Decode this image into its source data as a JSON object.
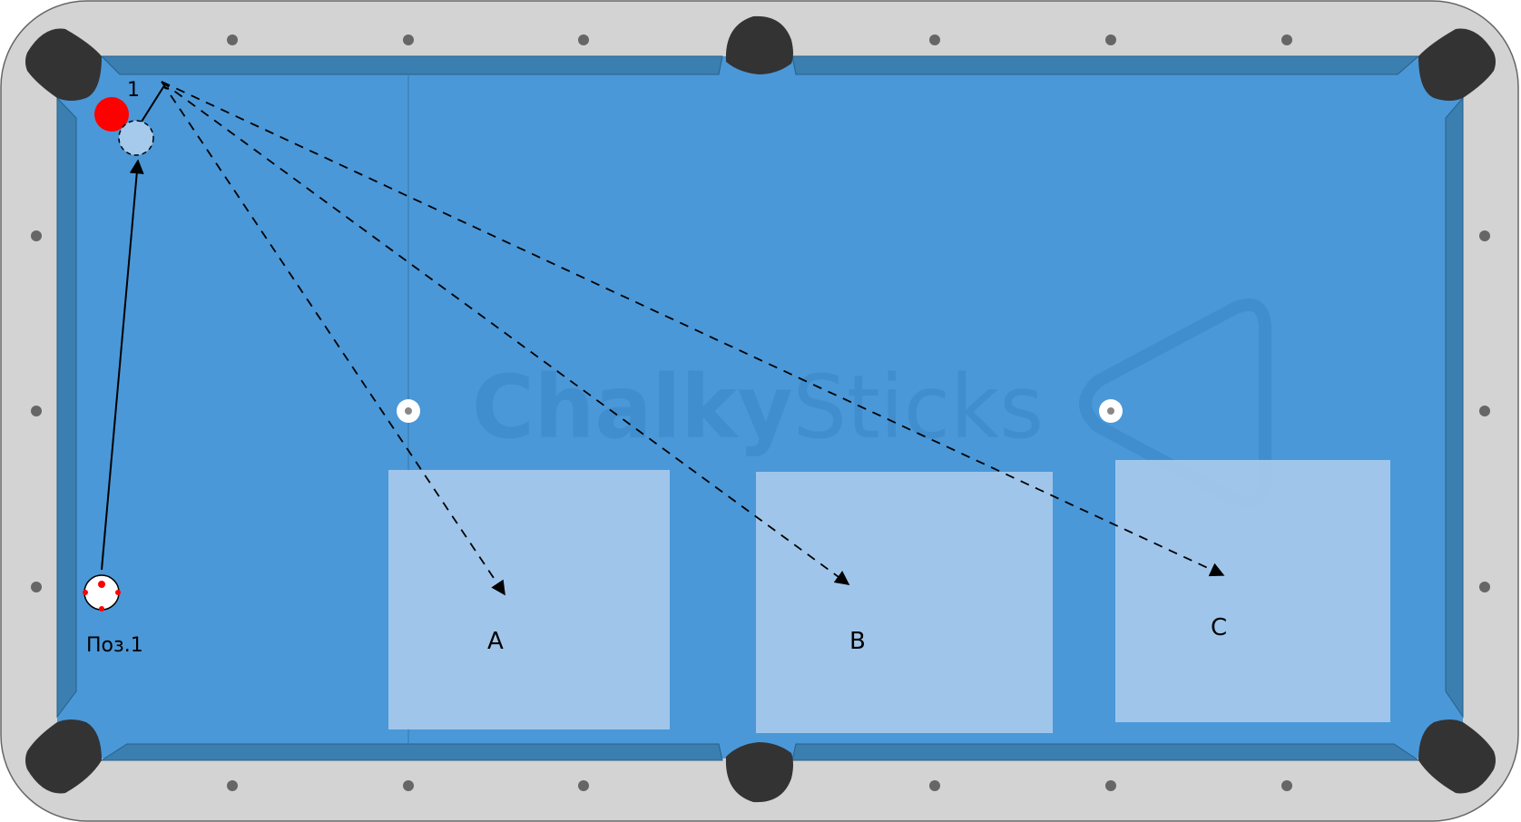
{
  "colors": {
    "rail": "#d3d3d3",
    "cloth": "#4a98d8",
    "cushion": "#3a7fb0",
    "pocket": "#333333",
    "zone": "#a6caec",
    "object_ball": "#ff0000",
    "ghost_ball": "#a6caec",
    "watermark": "#3a86c8"
  },
  "balls": {
    "cue_ball_label": "Поз.1",
    "object_ball_number": "1"
  },
  "zones": [
    {
      "label": "A"
    },
    {
      "label": "B"
    },
    {
      "label": "C"
    }
  ],
  "watermark": {
    "word1": "Chalky",
    "word2": "Sticks"
  },
  "icons": {
    "logo": "triangle-rack-icon",
    "spot": "spot-marker-icon",
    "diamond": "diamond-marker-icon"
  }
}
